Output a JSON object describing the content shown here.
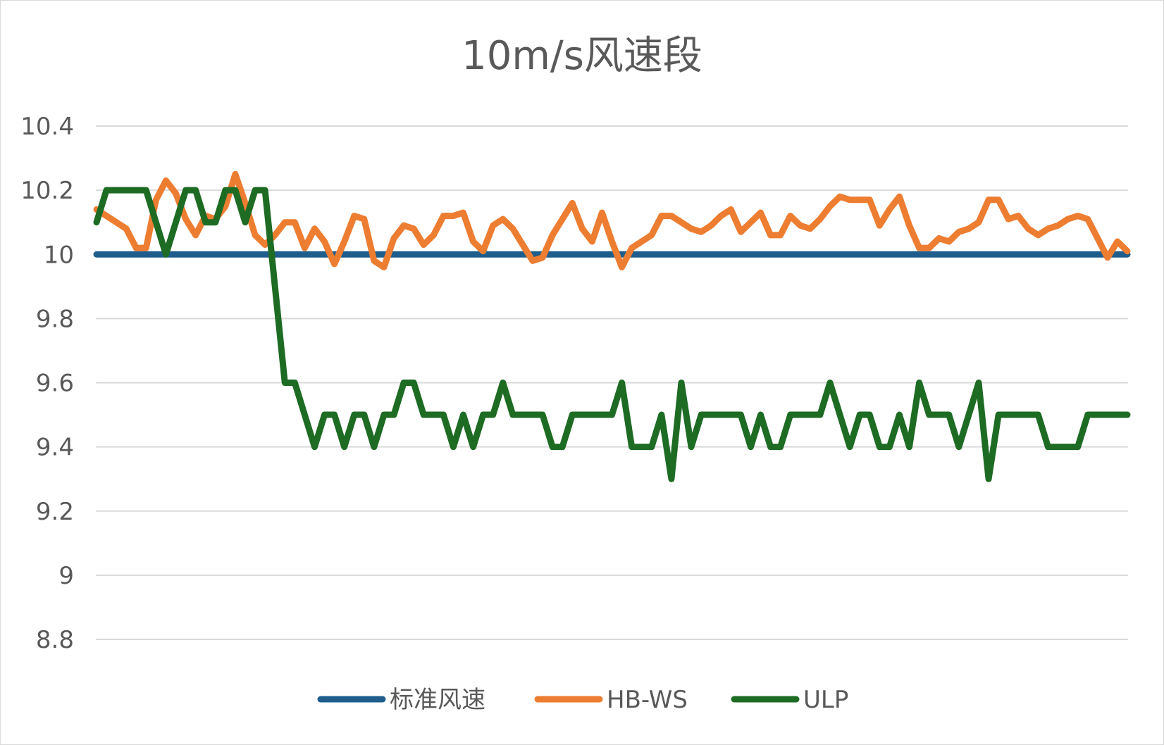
{
  "chart_data": {
    "type": "line",
    "title": "10m/s风速段",
    "xlabel": "",
    "ylabel": "",
    "ylim": [
      8.8,
      10.4
    ],
    "y_ticks": [
      "10.4",
      "10.2",
      "10",
      "9.8",
      "9.6",
      "9.4",
      "9.2",
      "9",
      "8.8"
    ],
    "grid": true,
    "legend": "bottom",
    "x": [
      1,
      2,
      3,
      4,
      5,
      6,
      7,
      8,
      9,
      10,
      11,
      12,
      13,
      14,
      15,
      16,
      17,
      18,
      19,
      20,
      21,
      22,
      23,
      24,
      25,
      26,
      27,
      28,
      29,
      30,
      31,
      32,
      33,
      34,
      35,
      36,
      37,
      38,
      39,
      40,
      41,
      42,
      43,
      44,
      45,
      46,
      47,
      48,
      49,
      50,
      51,
      52,
      53,
      54,
      55,
      56,
      57,
      58,
      59,
      60,
      61,
      62,
      63,
      64,
      65,
      66,
      67,
      68,
      69,
      70,
      71,
      72,
      73,
      74,
      75,
      76,
      77,
      78,
      79,
      80,
      81,
      82,
      83,
      84,
      85,
      86,
      87,
      88,
      89,
      90,
      91,
      92,
      93,
      94,
      95,
      96,
      97,
      98,
      99,
      100,
      101,
      102,
      103,
      104,
      105
    ],
    "series": [
      {
        "name": "标准风速",
        "color": "#1f5e8c",
        "values": [
          10,
          10,
          10,
          10,
          10,
          10,
          10,
          10,
          10,
          10,
          10,
          10,
          10,
          10,
          10,
          10,
          10,
          10,
          10,
          10,
          10,
          10,
          10,
          10,
          10,
          10,
          10,
          10,
          10,
          10,
          10,
          10,
          10,
          10,
          10,
          10,
          10,
          10,
          10,
          10,
          10,
          10,
          10,
          10,
          10,
          10,
          10,
          10,
          10,
          10,
          10,
          10,
          10,
          10,
          10,
          10,
          10,
          10,
          10,
          10,
          10,
          10,
          10,
          10,
          10,
          10,
          10,
          10,
          10,
          10,
          10,
          10,
          10,
          10,
          10,
          10,
          10,
          10,
          10,
          10,
          10,
          10,
          10,
          10,
          10,
          10,
          10,
          10,
          10,
          10,
          10,
          10,
          10,
          10,
          10,
          10,
          10,
          10,
          10,
          10,
          10,
          10,
          10,
          10,
          10
        ]
      },
      {
        "name": "HB-WS",
        "color": "#ed7d31",
        "values": [
          10.14,
          10.12,
          10.1,
          10.08,
          10.02,
          10.02,
          10.17,
          10.23,
          10.19,
          10.11,
          10.06,
          10.12,
          10.11,
          10.15,
          10.25,
          10.16,
          10.06,
          10.03,
          10.06,
          10.1,
          10.1,
          10.02,
          10.08,
          10.04,
          9.97,
          10.04,
          10.12,
          10.11,
          9.98,
          9.96,
          10.05,
          10.09,
          10.08,
          10.03,
          10.06,
          10.12,
          10.12,
          10.13,
          10.04,
          10.01,
          10.09,
          10.11,
          10.08,
          10.03,
          9.98,
          9.99,
          10.06,
          10.11,
          10.16,
          10.08,
          10.04,
          10.13,
          10.04,
          9.96,
          10.02,
          10.04,
          10.06,
          10.12,
          10.12,
          10.1,
          10.08,
          10.07,
          10.09,
          10.12,
          10.14,
          10.07,
          10.1,
          10.13,
          10.06,
          10.06,
          10.12,
          10.09,
          10.08,
          10.11,
          10.15,
          10.18,
          10.17,
          10.17,
          10.17,
          10.09,
          10.14,
          10.18,
          10.09,
          10.02,
          10.02,
          10.05,
          10.04,
          10.07,
          10.08,
          10.1,
          10.17,
          10.17,
          10.11,
          10.12,
          10.08,
          10.06,
          10.08,
          10.09,
          10.11,
          10.12,
          10.11,
          10.05,
          9.99,
          10.04,
          10.01
        ]
      },
      {
        "name": "ULP",
        "color": "#1e6b24",
        "values": [
          10.1,
          10.2,
          10.2,
          10.2,
          10.2,
          10.2,
          10.1,
          10,
          10.1,
          10.2,
          10.2,
          10.1,
          10.1,
          10.2,
          10.2,
          10.1,
          10.2,
          10.2,
          9.9,
          9.6,
          9.6,
          9.5,
          9.4,
          9.5,
          9.5,
          9.4,
          9.5,
          9.5,
          9.4,
          9.5,
          9.5,
          9.6,
          9.6,
          9.5,
          9.5,
          9.5,
          9.4,
          9.5,
          9.4,
          9.5,
          9.5,
          9.6,
          9.5,
          9.5,
          9.5,
          9.5,
          9.4,
          9.4,
          9.5,
          9.5,
          9.5,
          9.5,
          9.5,
          9.6,
          9.4,
          9.4,
          9.4,
          9.5,
          9.3,
          9.6,
          9.4,
          9.5,
          9.5,
          9.5,
          9.5,
          9.5,
          9.4,
          9.5,
          9.4,
          9.4,
          9.5,
          9.5,
          9.5,
          9.5,
          9.6,
          9.5,
          9.4,
          9.5,
          9.5,
          9.4,
          9.4,
          9.5,
          9.4,
          9.6,
          9.5,
          9.5,
          9.5,
          9.4,
          9.5,
          9.6,
          9.3,
          9.5,
          9.5,
          9.5,
          9.5,
          9.5,
          9.4,
          9.4,
          9.4,
          9.4,
          9.5,
          9.5,
          9.5,
          9.5,
          9.5
        ]
      }
    ]
  }
}
